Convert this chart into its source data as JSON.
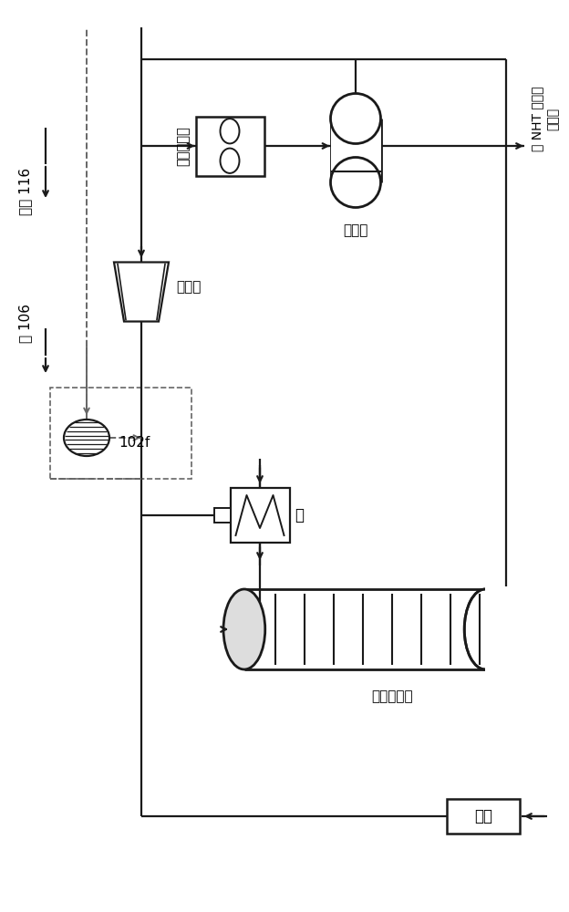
{
  "bg_color": "#ffffff",
  "lc": "#1a1a1a",
  "dc": "#666666",
  "label_102f": "102f",
  "label_from116": "来自 116",
  "label_to106": "至 106",
  "label_compressor": "压缩机",
  "label_air_cooler": "空气冷却器",
  "label_separator": "分离器",
  "label_to_nht": "到 NHT 汽提塔\n的进料",
  "label_hydrotreater": "加氢处理器",
  "label_furnace": "炉",
  "label_feed": "进料",
  "figwidth": 6.24,
  "figheight": 10.0,
  "dpi": 100
}
